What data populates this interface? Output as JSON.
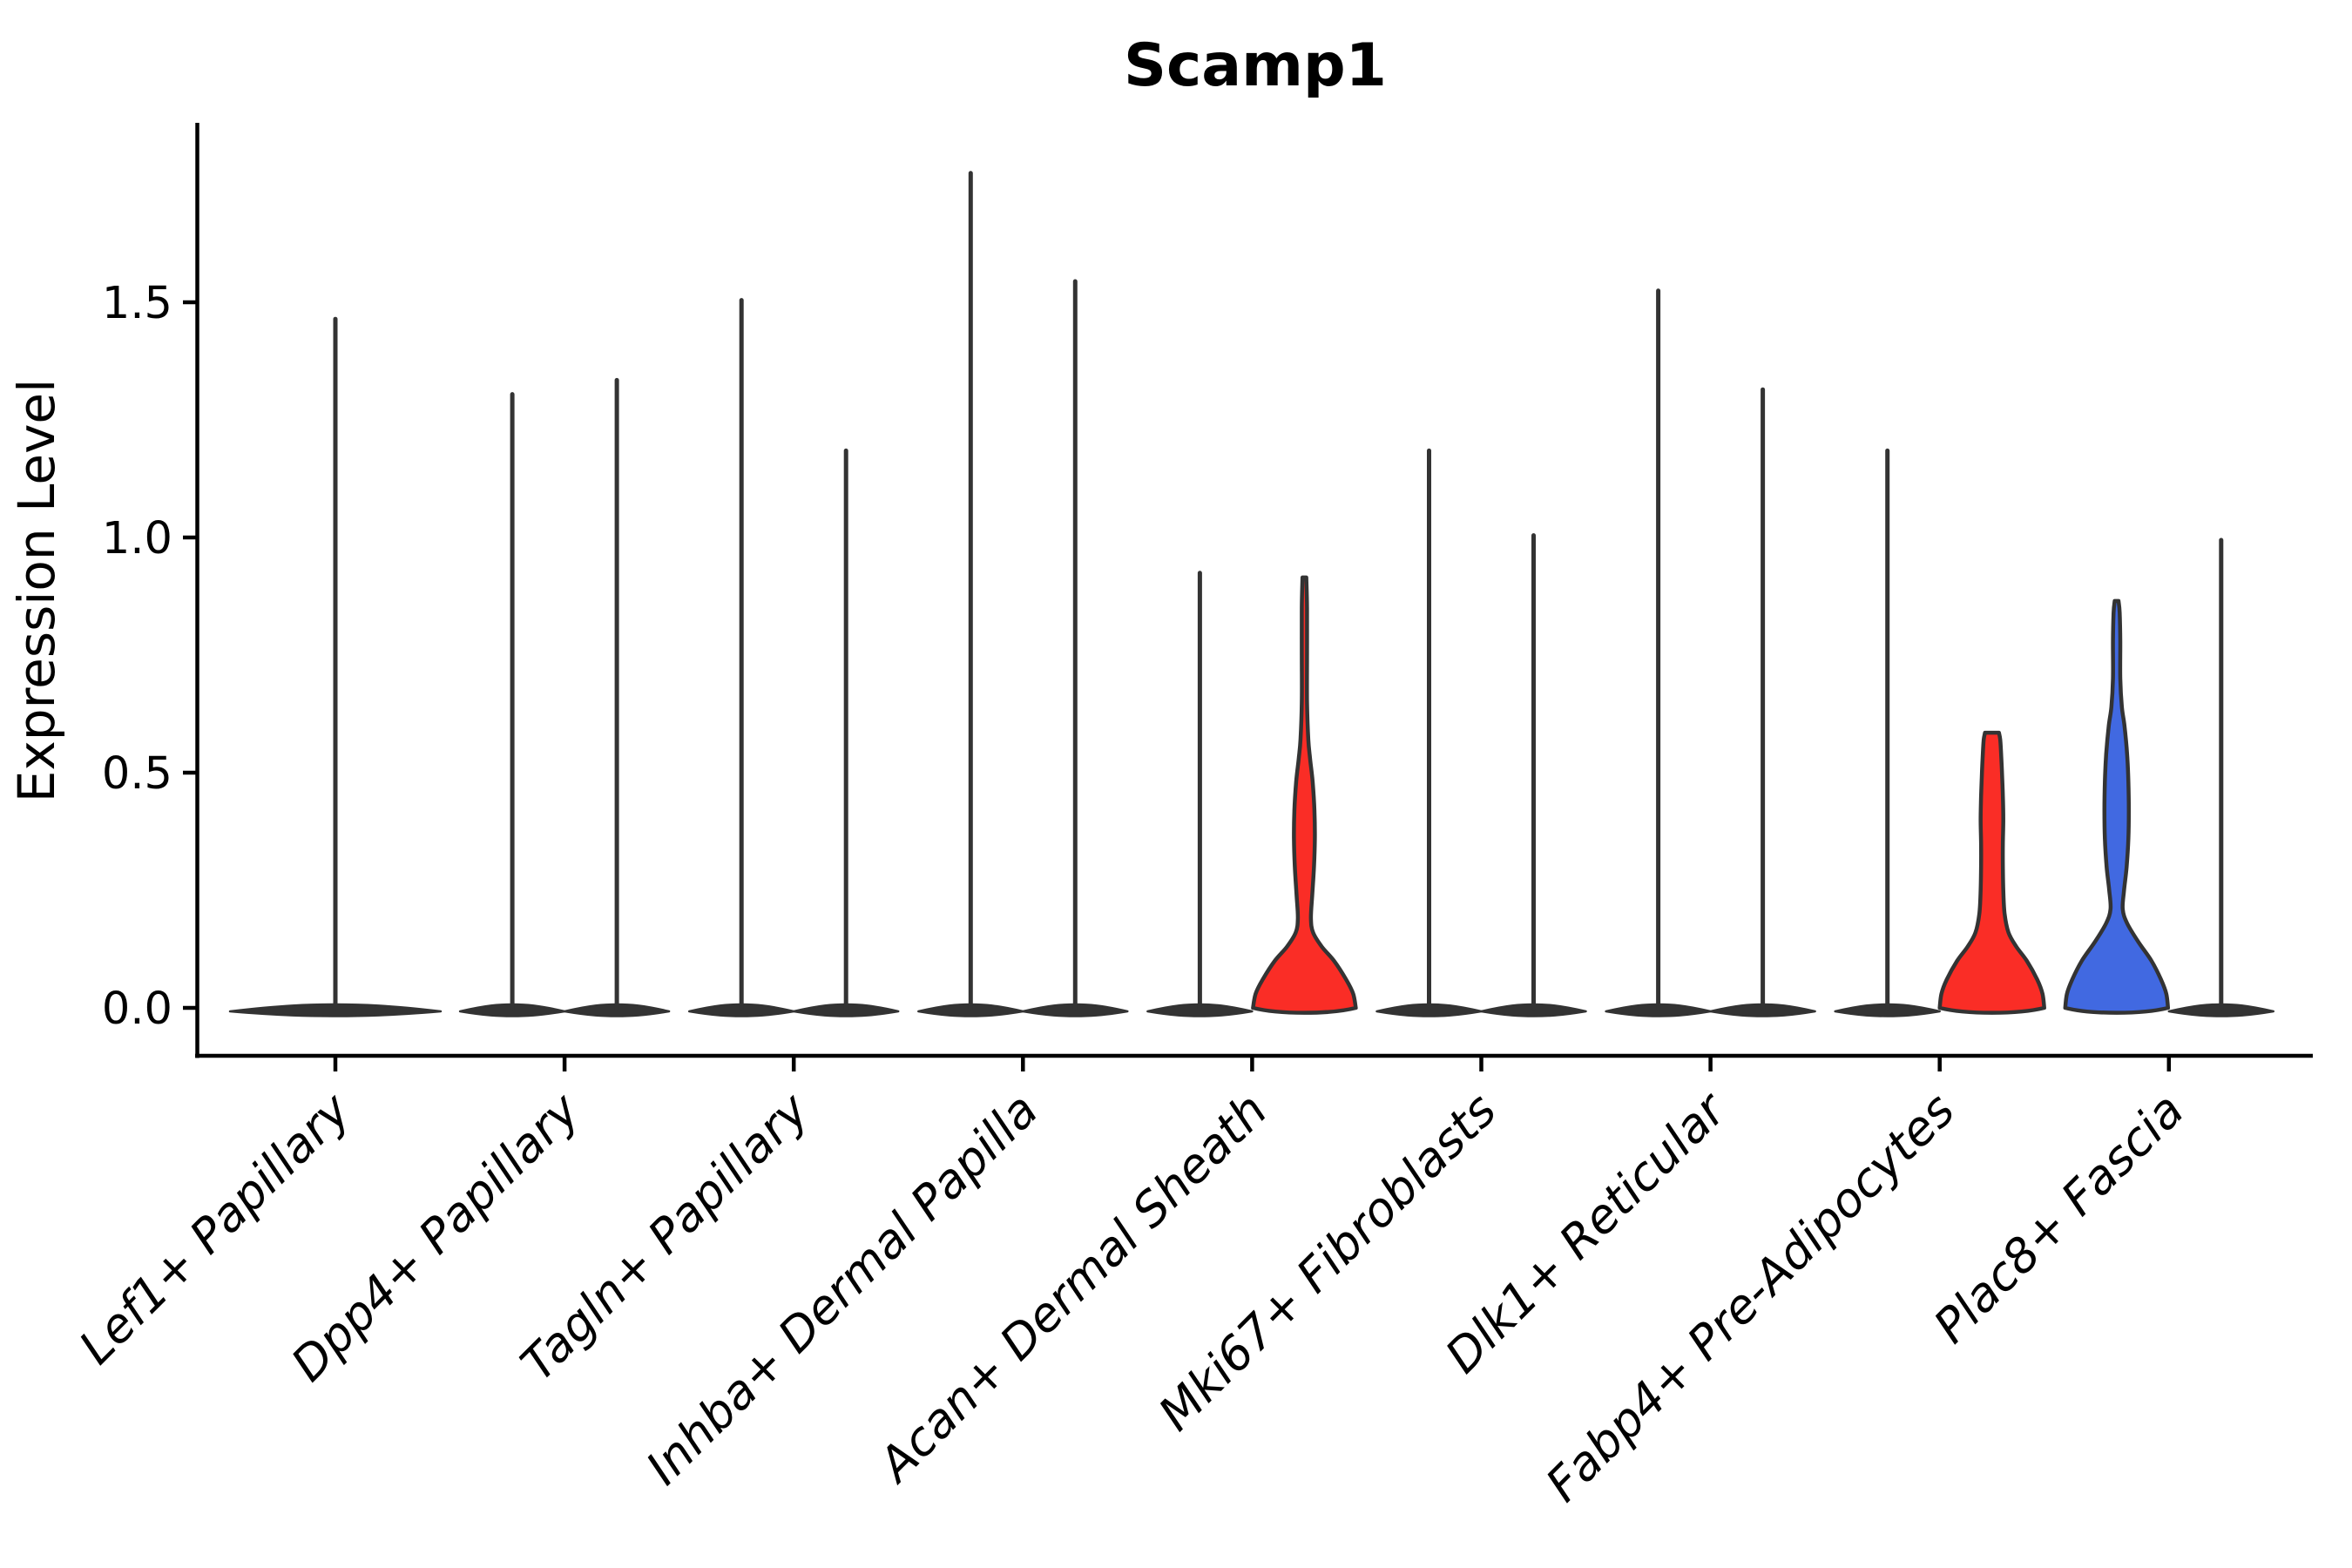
{
  "title": "Scamp1",
  "chart_data": {
    "type": "violin",
    "title": "Scamp1",
    "xlabel": "",
    "ylabel": "Expression Level",
    "yticks": {
      "labels": [
        "0.0",
        "0.5",
        "1.0",
        "1.5"
      ],
      "values": [
        0.0,
        0.5,
        1.0,
        1.5
      ]
    },
    "ylim": [
      -0.1,
      1.88
    ],
    "grid": false,
    "legend_position": "none",
    "colors": {
      "highlight_red": "#fa2d26",
      "highlight_blue": "#4169e1",
      "violin_outline": "#333333",
      "axis": "#000000",
      "background": "#ffffff"
    },
    "categories": [
      "Lef1+ Papillary",
      "Dpp4+ Papillary",
      "Tagln+ Papillary",
      "Inhba+ Dermal Papilla",
      "Acan+ Dermal Sheath",
      "Mki67+ Fibroblasts",
      "Dlk1+ Reticular",
      "Fabp4+ Pre-Adipocytes",
      "Plac8+ Fascia"
    ],
    "violins": [
      {
        "category": "Lef1+ Papillary",
        "cat_index": 0,
        "position": "center",
        "style": "collapsed",
        "max_expression": 1.47,
        "half_width": 121
      },
      {
        "category": "Dpp4+ Papillary",
        "cat_index": 1,
        "position": "left",
        "style": "collapsed",
        "max_expression": 1.31,
        "half_width": 60
      },
      {
        "category": "Dpp4+ Papillary",
        "cat_index": 1,
        "position": "right",
        "style": "collapsed",
        "max_expression": 1.34,
        "half_width": 60
      },
      {
        "category": "Tagln+ Papillary",
        "cat_index": 2,
        "position": "left",
        "style": "collapsed",
        "max_expression": 1.51,
        "half_width": 60
      },
      {
        "category": "Tagln+ Papillary",
        "cat_index": 2,
        "position": "right",
        "style": "collapsed",
        "max_expression": 1.19,
        "half_width": 60
      },
      {
        "category": "Inhba+ Dermal Papilla",
        "cat_index": 3,
        "position": "left",
        "style": "collapsed",
        "max_expression": 1.78,
        "half_width": 60
      },
      {
        "category": "Inhba+ Dermal Papilla",
        "cat_index": 3,
        "position": "right",
        "style": "collapsed",
        "max_expression": 1.55,
        "half_width": 60
      },
      {
        "category": "Acan+ Dermal Sheath",
        "cat_index": 4,
        "position": "left",
        "style": "collapsed",
        "max_expression": 0.93,
        "half_width": 60
      },
      {
        "category": "Acan+ Dermal Sheath",
        "cat_index": 4,
        "position": "right",
        "style": "filled",
        "color": "#fa2d26",
        "max_expression": 0.915,
        "half_width": 60,
        "cap_half_width": 2.2,
        "profile": [
          [
            0,
            59
          ],
          [
            0.03,
            56
          ],
          [
            0.06,
            48
          ],
          [
            0.1,
            34
          ],
          [
            0.13,
            20
          ],
          [
            0.16,
            10
          ],
          [
            0.19,
            7.5
          ],
          [
            0.24,
            9
          ],
          [
            0.3,
            11
          ],
          [
            0.36,
            12
          ],
          [
            0.42,
            11.5
          ],
          [
            0.48,
            9.5
          ],
          [
            0.53,
            6.5
          ],
          [
            0.57,
            4.5
          ],
          [
            0.65,
            3
          ],
          [
            0.75,
            3
          ],
          [
            0.85,
            3
          ],
          [
            0.915,
            2.2
          ]
        ]
      },
      {
        "category": "Mki67+ Fibroblasts",
        "cat_index": 5,
        "position": "left",
        "style": "collapsed",
        "max_expression": 1.19,
        "half_width": 60
      },
      {
        "category": "Mki67+ Fibroblasts",
        "cat_index": 5,
        "position": "right",
        "style": "collapsed",
        "max_expression": 1.01,
        "half_width": 60
      },
      {
        "category": "Dlk1+ Reticular",
        "cat_index": 6,
        "position": "left",
        "style": "collapsed",
        "max_expression": 1.53,
        "half_width": 60
      },
      {
        "category": "Dlk1+ Reticular",
        "cat_index": 6,
        "position": "right",
        "style": "collapsed",
        "max_expression": 1.32,
        "half_width": 60
      },
      {
        "category": "Fabp4+ Pre-Adipocytes",
        "cat_index": 7,
        "position": "left",
        "style": "collapsed",
        "max_expression": 1.19,
        "half_width": 60
      },
      {
        "category": "Fabp4+ Pre-Adipocytes",
        "cat_index": 7,
        "position": "right",
        "style": "filled",
        "color": "#fa2d26",
        "max_expression": 0.585,
        "half_width": 60,
        "cap_half_width": 8,
        "profile": [
          [
            0,
            60
          ],
          [
            0.03,
            58
          ],
          [
            0.06,
            52
          ],
          [
            0.1,
            40
          ],
          [
            0.13,
            28
          ],
          [
            0.16,
            19
          ],
          [
            0.2,
            14.5
          ],
          [
            0.25,
            13
          ],
          [
            0.3,
            12.5
          ],
          [
            0.35,
            12.5
          ],
          [
            0.4,
            13
          ],
          [
            0.45,
            12.5
          ],
          [
            0.5,
            11.5
          ],
          [
            0.54,
            10.5
          ],
          [
            0.57,
            9.5
          ],
          [
            0.585,
            8
          ]
        ]
      },
      {
        "category": "Plac8+ Fascia",
        "cat_index": 8,
        "position": "left",
        "style": "filled",
        "color": "#4169e1",
        "max_expression": 0.865,
        "half_width": 60,
        "cap_half_width": 2.2,
        "profile": [
          [
            0,
            59
          ],
          [
            0.03,
            57
          ],
          [
            0.06,
            51
          ],
          [
            0.1,
            40
          ],
          [
            0.14,
            25
          ],
          [
            0.18,
            12
          ],
          [
            0.21,
            7
          ],
          [
            0.25,
            8.5
          ],
          [
            0.3,
            11.5
          ],
          [
            0.36,
            13.5
          ],
          [
            0.42,
            14
          ],
          [
            0.48,
            13.5
          ],
          [
            0.54,
            12
          ],
          [
            0.6,
            9
          ],
          [
            0.64,
            6
          ],
          [
            0.7,
            4.2
          ],
          [
            0.78,
            4.2
          ],
          [
            0.84,
            3.5
          ],
          [
            0.865,
            2.2
          ]
        ]
      },
      {
        "category": "Plac8+ Fascia",
        "cat_index": 8,
        "position": "right",
        "style": "collapsed",
        "max_expression": 1.0,
        "half_width": 60
      }
    ]
  }
}
